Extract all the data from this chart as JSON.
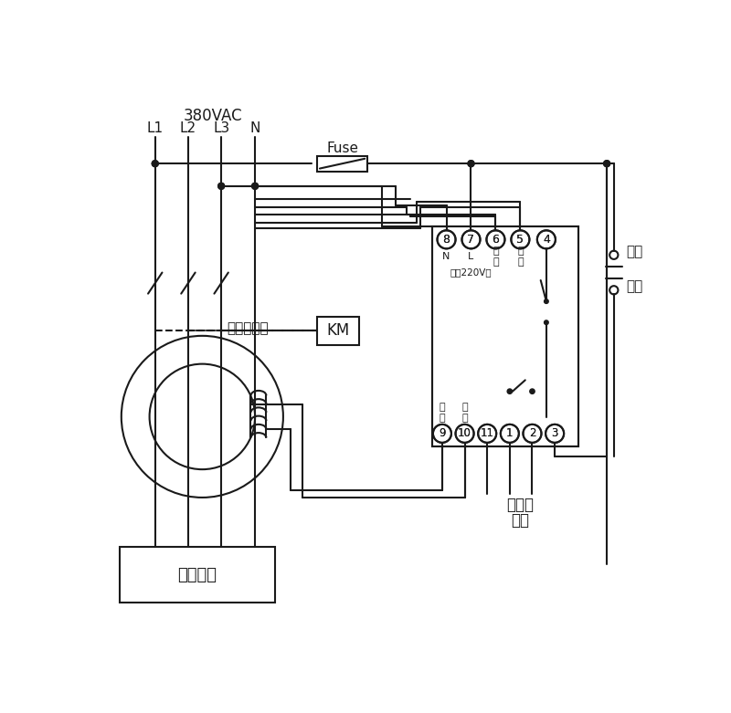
{
  "bg_color": "#ffffff",
  "line_color": "#1a1a1a",
  "voltage_label": "380VAC",
  "line_labels": [
    "L1",
    "L2",
    "L3",
    "N"
  ],
  "fuse_label": "Fuse",
  "km_label": "KM",
  "transformer_label": "零序互感器",
  "device_label": "用户设备",
  "relay_label1": "接声光",
  "relay_label2": "报警",
  "lock_label1": "自锁",
  "lock_label2": "开关",
  "terminal_top": [
    "8",
    "7",
    "6",
    "5",
    "4"
  ],
  "terminal_bottom": [
    "9",
    "10",
    "11",
    "1",
    "2",
    "3"
  ],
  "top_labels": [
    "N",
    "L",
    "试\n验",
    "试\n验"
  ],
  "bot_labels": [
    "信\n号",
    "信\n号"
  ],
  "sub_label": "电源220V～"
}
